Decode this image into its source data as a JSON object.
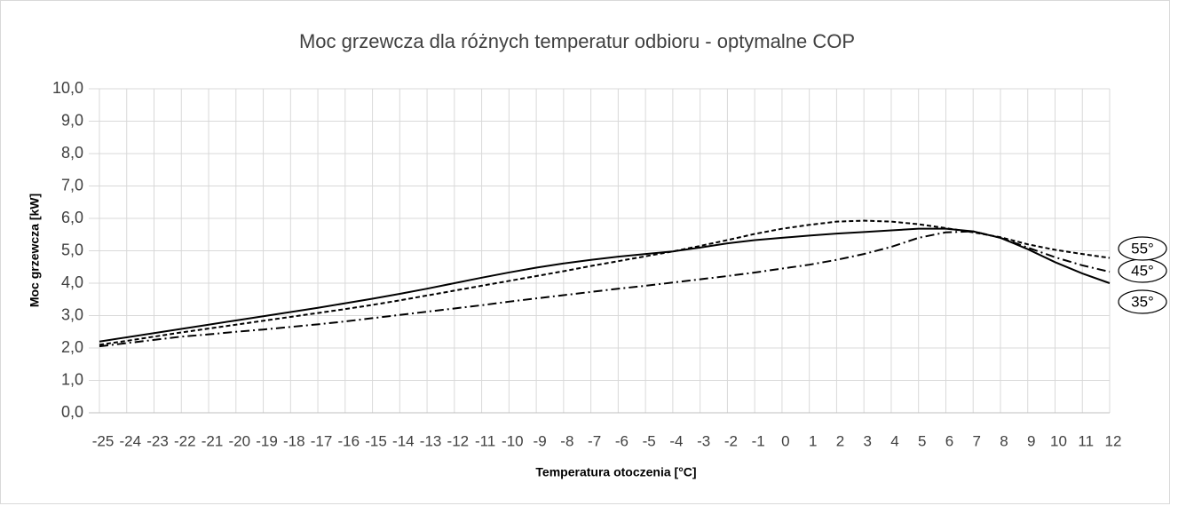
{
  "chart_data": {
    "type": "line",
    "title": "Moc grzewcza dla różnych temperatur odbioru - optymalne COP",
    "x_label": "Temperatura otoczenia [°C]",
    "y_label": "Moc grzewcza [kW]",
    "x": [
      -25,
      -24,
      -23,
      -22,
      -21,
      -20,
      -19,
      -18,
      -17,
      -16,
      -15,
      -14,
      -13,
      -12,
      -11,
      -10,
      -9,
      -8,
      -7,
      -6,
      -5,
      -4,
      -3,
      -2,
      -1,
      0,
      1,
      2,
      3,
      4,
      5,
      6,
      7,
      8,
      9,
      10,
      11,
      12
    ],
    "xlim": [
      -25,
      12
    ],
    "xticks": [
      -25,
      -24,
      -23,
      -22,
      -21,
      -20,
      -19,
      -18,
      -17,
      -16,
      -15,
      -14,
      -13,
      -12,
      -11,
      -10,
      -9,
      -8,
      -7,
      -6,
      -5,
      -4,
      -3,
      -2,
      -1,
      0,
      1,
      2,
      3,
      4,
      5,
      6,
      7,
      8,
      9,
      10,
      11,
      12
    ],
    "ylim": [
      0,
      10
    ],
    "yticks": [
      {
        "value": 0,
        "label": "0,0"
      },
      {
        "value": 1,
        "label": "1,0"
      },
      {
        "value": 2,
        "label": "2,0"
      },
      {
        "value": 3,
        "label": "3,0"
      },
      {
        "value": 4,
        "label": "4,0"
      },
      {
        "value": 5,
        "label": "5,0"
      },
      {
        "value": 6,
        "label": "6,0"
      },
      {
        "value": 7,
        "label": "7,0"
      },
      {
        "value": 8,
        "label": "8,0"
      },
      {
        "value": 9,
        "label": "9,0"
      },
      {
        "value": 10,
        "label": "10,0"
      }
    ],
    "grid": true,
    "series": [
      {
        "name": "35°",
        "color": "#000000",
        "dash": "solid",
        "values": [
          2.2,
          2.33,
          2.46,
          2.59,
          2.72,
          2.85,
          2.98,
          3.11,
          3.24,
          3.38,
          3.52,
          3.67,
          3.83,
          4.0,
          4.17,
          4.33,
          4.48,
          4.61,
          4.72,
          4.82,
          4.9,
          4.98,
          5.1,
          5.23,
          5.33,
          5.4,
          5.47,
          5.53,
          5.58,
          5.63,
          5.68,
          5.68,
          5.6,
          5.4,
          5.05,
          4.65,
          4.3,
          4.0
        ]
      },
      {
        "name": "45°",
        "color": "#000000",
        "dash": "dashdot",
        "values": [
          2.05,
          2.15,
          2.25,
          2.35,
          2.42,
          2.5,
          2.57,
          2.65,
          2.73,
          2.82,
          2.92,
          3.02,
          3.12,
          3.22,
          3.32,
          3.43,
          3.53,
          3.63,
          3.73,
          3.83,
          3.92,
          4.02,
          4.12,
          4.22,
          4.33,
          4.45,
          4.57,
          4.72,
          4.9,
          5.12,
          5.4,
          5.57,
          5.6,
          5.4,
          5.1,
          4.8,
          4.55,
          4.35
        ]
      },
      {
        "name": "55°",
        "color": "#000000",
        "dash": "dash",
        "values": [
          2.1,
          2.22,
          2.35,
          2.48,
          2.6,
          2.72,
          2.84,
          2.96,
          3.08,
          3.2,
          3.33,
          3.47,
          3.62,
          3.77,
          3.92,
          4.07,
          4.22,
          4.37,
          4.53,
          4.68,
          4.83,
          4.98,
          5.15,
          5.33,
          5.52,
          5.68,
          5.8,
          5.9,
          5.93,
          5.9,
          5.82,
          5.7,
          5.57,
          5.42,
          5.2,
          5.03,
          4.9,
          4.78
        ]
      }
    ]
  }
}
